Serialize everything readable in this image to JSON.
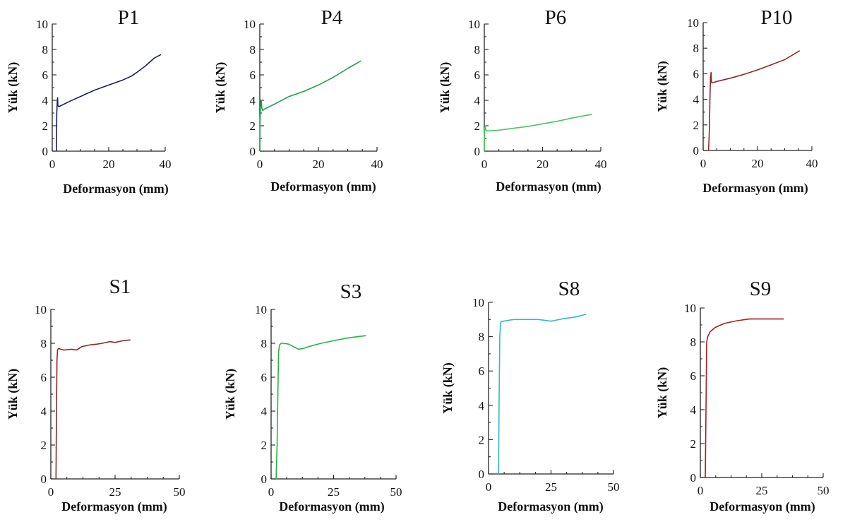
{
  "chart_data": [
    {
      "type": "line",
      "title": "P1",
      "xlabel": "Deformasyon (mm)",
      "ylabel": "Yük (kN)",
      "xlim": [
        0,
        40
      ],
      "ylim": [
        0,
        10
      ],
      "xticks": [
        0,
        20,
        40
      ],
      "yticks": [
        0,
        2,
        4,
        6,
        8,
        10
      ],
      "grid": false,
      "color": "#1c1f5e",
      "series": [
        {
          "x": [
            1.5,
            1.6,
            1.8,
            1.9,
            2.0,
            2.3,
            2.8,
            6,
            10,
            15,
            20,
            25,
            28,
            30,
            33,
            36,
            38.5
          ],
          "y": [
            0,
            3.0,
            4.0,
            4.2,
            3.6,
            3.5,
            3.55,
            3.9,
            4.3,
            4.8,
            5.2,
            5.6,
            5.9,
            6.2,
            6.7,
            7.3,
            7.6
          ]
        }
      ]
    },
    {
      "type": "line",
      "title": "P4",
      "xlabel": "Deformasyon (mm)",
      "ylabel": "Yük (kN)",
      "xlim": [
        0,
        40
      ],
      "ylim": [
        0,
        10
      ],
      "xticks": [
        0,
        20,
        40
      ],
      "yticks": [
        0,
        2,
        4,
        6,
        8,
        10
      ],
      "grid": false,
      "color": "#1ea24a",
      "series": [
        {
          "x": [
            0,
            0.1,
            0.3,
            0.5,
            0.7,
            1.0,
            1.5,
            5,
            10,
            15,
            20,
            25,
            30,
            34.5
          ],
          "y": [
            0,
            2.5,
            3.8,
            4.0,
            3.4,
            3.2,
            3.3,
            3.7,
            4.3,
            4.7,
            5.2,
            5.8,
            6.5,
            7.1
          ]
        }
      ]
    },
    {
      "type": "line",
      "title": "P6",
      "xlabel": "Deformasyon (mm)",
      "ylabel": "Yük (kN)",
      "xlim": [
        0,
        40
      ],
      "ylim": [
        0,
        10
      ],
      "xticks": [
        0,
        20,
        40
      ],
      "yticks": [
        0,
        2,
        4,
        6,
        8,
        10
      ],
      "grid": false,
      "color": "#4cc466",
      "series": [
        {
          "x": [
            0,
            0.1,
            0.2,
            0.3,
            0.5,
            0.8,
            2,
            5,
            10,
            15,
            20,
            25,
            30,
            37
          ],
          "y": [
            0,
            1.2,
            1.8,
            2.0,
            1.7,
            1.6,
            1.6,
            1.65,
            1.8,
            1.95,
            2.15,
            2.35,
            2.6,
            2.9
          ]
        }
      ]
    },
    {
      "type": "line",
      "title": "P10",
      "xlabel": "Deformasyon (mm)",
      "ylabel": "Yük (kN)",
      "xlim": [
        0,
        40
      ],
      "ylim": [
        0,
        10
      ],
      "xticks": [
        0,
        20,
        40
      ],
      "yticks": [
        0,
        2,
        4,
        6,
        8,
        10
      ],
      "grid": false,
      "color": "#8b2a2a",
      "series": [
        {
          "x": [
            2.0,
            2.3,
            2.5,
            2.7,
            2.9,
            3.1,
            3.5,
            5,
            10,
            15,
            20,
            25,
            30,
            35.5
          ],
          "y": [
            0,
            1.8,
            4.0,
            5.7,
            6.1,
            5.3,
            5.3,
            5.4,
            5.65,
            5.95,
            6.3,
            6.7,
            7.1,
            7.8
          ]
        }
      ]
    },
    {
      "type": "line",
      "title": "S1",
      "xlabel": "Deformasyon (mm)",
      "ylabel": "Yük (kN)",
      "xlim": [
        0,
        50
      ],
      "ylim": [
        0,
        10
      ],
      "xticks": [
        0,
        25,
        50
      ],
      "yticks": [
        0,
        2,
        4,
        6,
        8,
        10
      ],
      "grid": false,
      "color": "#8b2a2a",
      "series": [
        {
          "x": [
            2.0,
            2.2,
            2.4,
            2.6,
            3.0,
            5,
            8,
            10,
            12,
            15,
            18,
            20,
            23,
            25,
            28,
            31
          ],
          "y": [
            0,
            4.0,
            7.0,
            7.6,
            7.7,
            7.6,
            7.65,
            7.6,
            7.8,
            7.9,
            7.95,
            8.0,
            8.1,
            8.05,
            8.15,
            8.2
          ]
        }
      ]
    },
    {
      "type": "line",
      "title": "S3",
      "xlabel": "Deformasyon (mm)",
      "ylabel": "Yük (kN)",
      "xlim": [
        0,
        50
      ],
      "ylim": [
        0,
        10
      ],
      "xticks": [
        0,
        25,
        50
      ],
      "yticks": [
        0,
        2,
        4,
        6,
        8,
        10
      ],
      "grid": false,
      "color": "#2bb146",
      "series": [
        {
          "x": [
            2.0,
            2.4,
            2.7,
            3.0,
            3.4,
            4.0,
            5,
            7,
            9,
            11,
            13,
            15,
            20,
            25,
            30,
            35,
            38
          ],
          "y": [
            0,
            2.0,
            5.0,
            7.5,
            7.9,
            8.0,
            8.0,
            7.95,
            7.8,
            7.65,
            7.7,
            7.8,
            8.0,
            8.15,
            8.3,
            8.4,
            8.45
          ]
        }
      ]
    },
    {
      "type": "line",
      "title": "S8",
      "xlabel": "Deformasyon (mm)",
      "ylabel": "Yük (kN)",
      "xlim": [
        0,
        50
      ],
      "ylim": [
        0,
        10
      ],
      "xticks": [
        0,
        25,
        50
      ],
      "yticks": [
        0,
        2,
        4,
        6,
        8,
        10
      ],
      "grid": false,
      "color": "#34b8c4",
      "series": [
        {
          "x": [
            4.0,
            4.2,
            4.5,
            4.8,
            5.2,
            6,
            10,
            15,
            20,
            25,
            30,
            35,
            39
          ],
          "y": [
            0,
            4.0,
            8.0,
            8.8,
            8.9,
            8.9,
            9.0,
            9.0,
            9.0,
            8.9,
            9.05,
            9.15,
            9.3
          ]
        }
      ]
    },
    {
      "type": "line",
      "title": "S9",
      "xlabel": "Deformasyon (mm)",
      "ylabel": "Yük (kN)",
      "xlim": [
        0,
        50
      ],
      "ylim": [
        0,
        10
      ],
      "xticks": [
        0,
        25,
        50
      ],
      "yticks": [
        0,
        2,
        4,
        6,
        8,
        10
      ],
      "grid": false,
      "color": "#a52121",
      "series": [
        {
          "x": [
            2.0,
            2.1,
            2.3,
            2.6,
            3,
            4,
            6,
            10,
            15,
            20,
            25,
            30,
            34
          ],
          "y": [
            0,
            1.0,
            4.0,
            8.0,
            8.3,
            8.6,
            8.85,
            9.1,
            9.25,
            9.35,
            9.35,
            9.35,
            9.35
          ]
        }
      ]
    }
  ]
}
